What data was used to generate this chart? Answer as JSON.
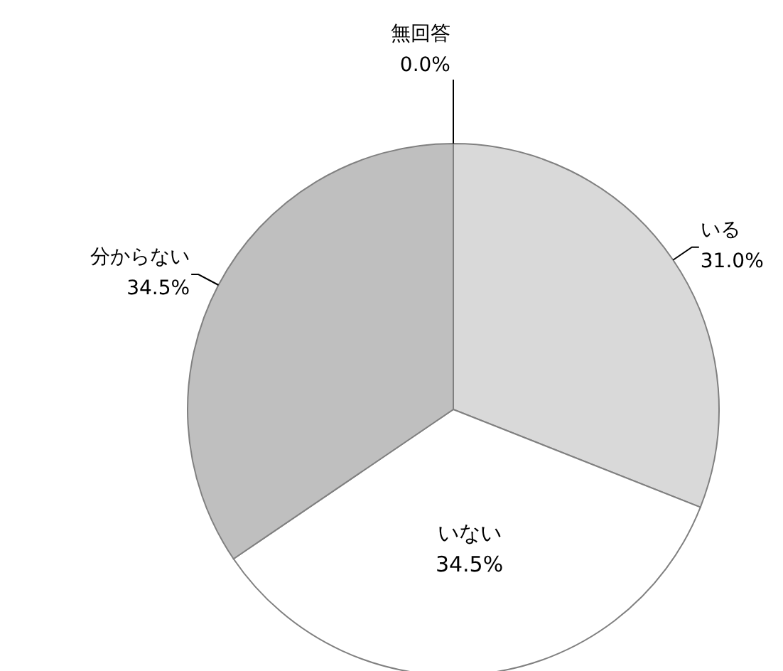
{
  "chart_data": {
    "type": "pie",
    "categories": [
      "いる",
      "いない",
      "分からない",
      "無回答"
    ],
    "values": [
      31.0,
      34.5,
      34.5,
      0.0
    ],
    "value_labels": [
      "31.0%",
      "34.5%",
      "34.5%",
      "0.0%"
    ],
    "colors": [
      "#d9d9d9",
      "#ffffff",
      "#bfbfbf",
      "#a6a6a6"
    ],
    "legend": false
  }
}
